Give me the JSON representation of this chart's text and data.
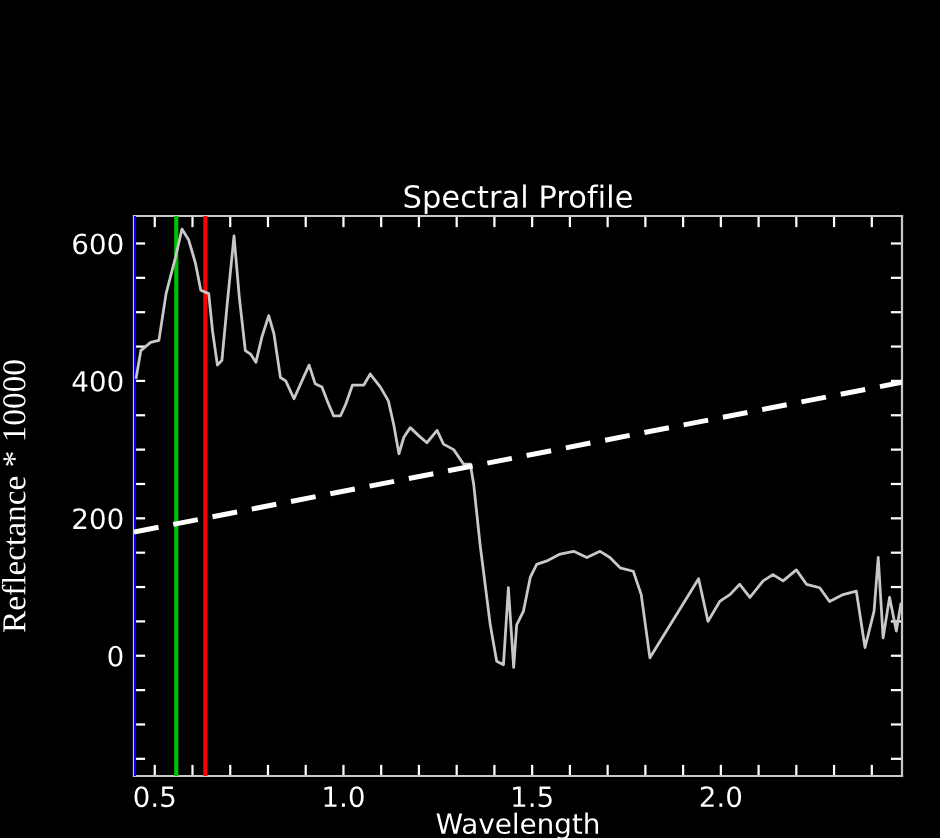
{
  "chart_data": {
    "type": "line",
    "title": "Spectral Profile",
    "xlabel": "Wavelength",
    "ylabel": "Reflectance * 10000",
    "xlim": [
      0.445,
      2.48
    ],
    "ylim": [
      -175,
      640
    ],
    "xticks": [
      {
        "value": 0.5,
        "label": "0.5"
      },
      {
        "value": 0.6,
        "label": null
      },
      {
        "value": 0.7,
        "label": null
      },
      {
        "value": 0.8,
        "label": null
      },
      {
        "value": 0.9,
        "label": null
      },
      {
        "value": 1.0,
        "label": "1.0"
      },
      {
        "value": 1.1,
        "label": null
      },
      {
        "value": 1.2,
        "label": null
      },
      {
        "value": 1.3,
        "label": null
      },
      {
        "value": 1.4,
        "label": null
      },
      {
        "value": 1.5,
        "label": "1.5"
      },
      {
        "value": 1.6,
        "label": null
      },
      {
        "value": 1.7,
        "label": null
      },
      {
        "value": 1.8,
        "label": null
      },
      {
        "value": 1.9,
        "label": null
      },
      {
        "value": 2.0,
        "label": "2.0"
      },
      {
        "value": 2.1,
        "label": null
      },
      {
        "value": 2.2,
        "label": null
      },
      {
        "value": 2.3,
        "label": null
      },
      {
        "value": 2.4,
        "label": null
      }
    ],
    "yticks": [
      {
        "value": -150,
        "label": null
      },
      {
        "value": -100,
        "label": null
      },
      {
        "value": -50,
        "label": null
      },
      0,
      {
        "value": 50,
        "label": null
      },
      {
        "value": 100,
        "label": null
      },
      {
        "value": 150,
        "label": null
      },
      200,
      {
        "value": 250,
        "label": null
      },
      {
        "value": 300,
        "label": null
      },
      {
        "value": 350,
        "label": null
      },
      400,
      {
        "value": 450,
        "label": null
      },
      {
        "value": 500,
        "label": null
      },
      {
        "value": 550,
        "label": null
      },
      600
    ],
    "grid": false,
    "legend": false,
    "marker": "none",
    "series": [
      {
        "color": "#c8c8c8",
        "line_style": "solid",
        "x": [
          0.451,
          0.463,
          0.489,
          0.511,
          0.53,
          0.555,
          0.572,
          0.59,
          0.608,
          0.622,
          0.643,
          0.653,
          0.666,
          0.678,
          0.692,
          0.71,
          0.724,
          0.74,
          0.754,
          0.768,
          0.784,
          0.802,
          0.816,
          0.833,
          0.847,
          0.869,
          0.89,
          0.909,
          0.925,
          0.943,
          0.957,
          0.974,
          0.992,
          1.006,
          1.024,
          1.054,
          1.071,
          1.098,
          1.119,
          1.133,
          1.147,
          1.16,
          1.177,
          1.2,
          1.221,
          1.248,
          1.265,
          1.292,
          1.318,
          1.336,
          1.345,
          1.362,
          1.389,
          1.406,
          1.424,
          1.437,
          1.451,
          1.459,
          1.477,
          1.495,
          1.512,
          1.539,
          1.574,
          1.61,
          1.645,
          1.68,
          1.706,
          1.733,
          1.768,
          1.789,
          1.812,
          1.941,
          1.966,
          1.997,
          2.024,
          2.05,
          2.077,
          2.112,
          2.138,
          2.165,
          2.2,
          2.227,
          2.262,
          2.288,
          2.324,
          2.359,
          2.382,
          2.406,
          2.417,
          2.43,
          2.447,
          2.465,
          2.477
        ],
        "values": [
          405,
          444,
          456,
          459,
          527,
          580,
          621,
          605,
          571,
          532,
          527,
          473,
          423,
          430,
          512,
          611,
          522,
          444,
          439,
          427,
          464,
          495,
          468,
          405,
          400,
          374,
          400,
          423,
          396,
          391,
          371,
          349,
          349,
          366,
          394,
          394,
          410,
          391,
          371,
          337,
          294,
          318,
          332,
          320,
          310,
          328,
          308,
          300,
          279,
          279,
          250,
          162,
          45,
          -8,
          -13,
          99,
          -17,
          45,
          65,
          114,
          133,
          138,
          148,
          152,
          143,
          152,
          143,
          128,
          123,
          89,
          -3,
          112,
          50,
          79,
          89,
          104,
          85,
          109,
          118,
          109,
          125,
          104,
          99,
          79,
          89,
          94,
          12,
          65,
          143,
          26,
          85,
          36,
          75
        ]
      },
      {
        "color": "#ffffff",
        "line_style": "dashed",
        "x": [
          0.445,
          2.48
        ],
        "values": [
          180,
          398
        ]
      }
    ],
    "ref_lines": [
      {
        "axis": "x",
        "value": 0.445,
        "color": "#0000ff"
      },
      {
        "axis": "x",
        "value": 0.557,
        "color": "#00c000"
      },
      {
        "axis": "x",
        "value": 0.634,
        "color": "#ff0000"
      }
    ]
  }
}
